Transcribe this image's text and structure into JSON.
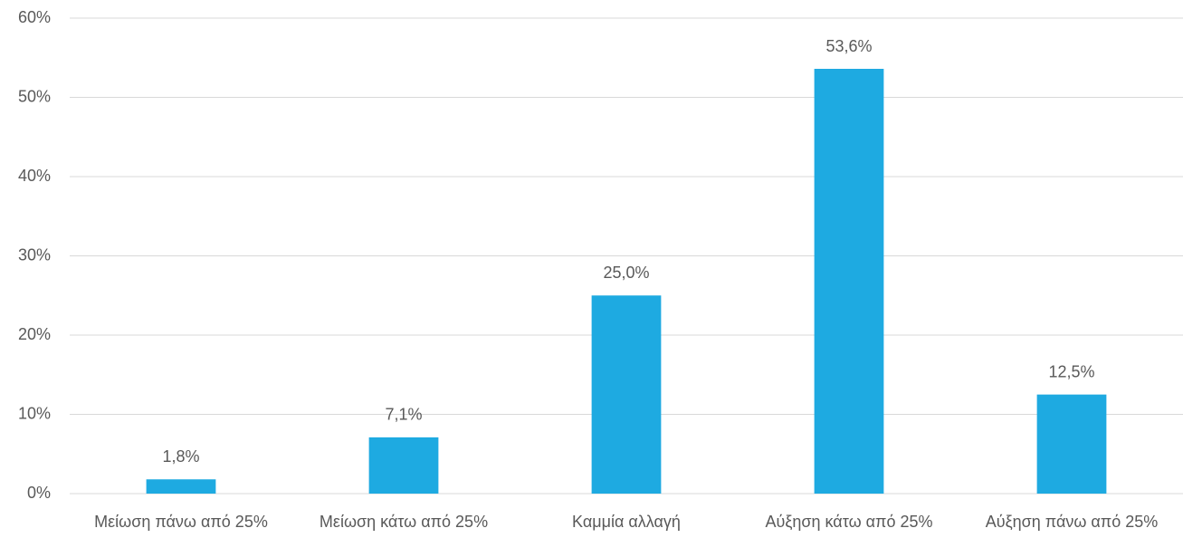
{
  "chart_data": {
    "type": "bar",
    "categories": [
      "Μείωση πάνω από 25%",
      "Μείωση κάτω από 25%",
      "Καμμία αλλαγή",
      "Αύξηση κάτω από 25%",
      "Αύξηση πάνω από 25%"
    ],
    "values": [
      1.8,
      7.1,
      25.0,
      53.6,
      12.5
    ],
    "value_labels": [
      "1,8%",
      "7,1%",
      "25,0%",
      "53,6%",
      "12,5%"
    ],
    "color": "#1eaae1",
    "ylim": [
      0,
      60
    ],
    "yticks": [
      {
        "value": 0,
        "label": "0%"
      },
      {
        "value": 10,
        "label": "10%"
      },
      {
        "value": 20,
        "label": "20%"
      },
      {
        "value": 30,
        "label": "30%"
      },
      {
        "value": 40,
        "label": "40%"
      },
      {
        "value": 50,
        "label": "50%"
      },
      {
        "value": 60,
        "label": "60%"
      }
    ],
    "grid": true
  }
}
